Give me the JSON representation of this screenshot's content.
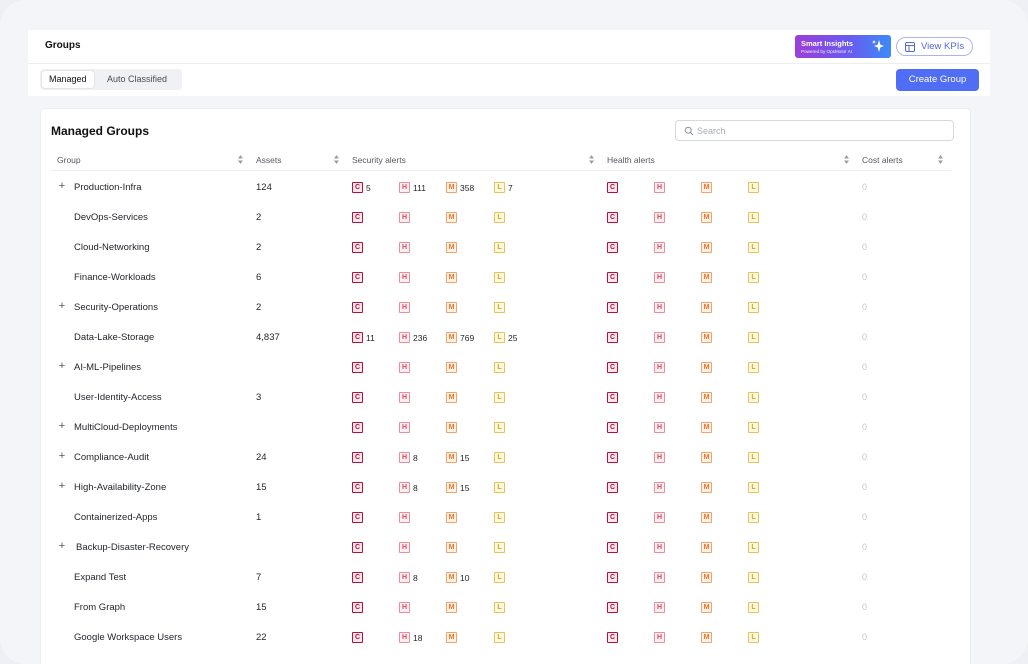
{
  "header": {
    "title": "Groups",
    "smart_insights": {
      "title": "Smart Insights",
      "subtitle": "Powered by OpsMotor AI"
    },
    "view_kpis": "View KPIs"
  },
  "tabs": [
    {
      "label": "Managed",
      "active": true
    },
    {
      "label": "Auto Classified",
      "active": false
    }
  ],
  "create_group": "Create Group",
  "card": {
    "title": "Managed Groups",
    "search_placeholder": "Search"
  },
  "columns": {
    "group": "Group",
    "assets": "Assets",
    "security": "Security alerts",
    "health": "Health alerts",
    "cost": "Cost alerts"
  },
  "badge_letters": {
    "c": "C",
    "h": "H",
    "m": "M",
    "l": "L"
  },
  "colors": {
    "critical": "#b3123c",
    "high": "#e2445c",
    "medium": "#e8742e",
    "low": "#d8a418",
    "accent": "#4f6df5"
  },
  "rows": [
    {
      "expandable": true,
      "name": "Production-Infra",
      "assets": "124",
      "sec": {
        "c": "5",
        "h": "111",
        "m": "358",
        "l": "7"
      },
      "cost": "0"
    },
    {
      "expandable": false,
      "name": "DevOps-Services",
      "assets": "2",
      "sec": {
        "c": "",
        "h": "",
        "m": "",
        "l": ""
      },
      "cost": "0"
    },
    {
      "expandable": false,
      "name": "Cloud-Networking",
      "assets": "2",
      "sec": {
        "c": "",
        "h": "",
        "m": "",
        "l": ""
      },
      "cost": "0"
    },
    {
      "expandable": false,
      "name": "Finance-Workloads",
      "assets": "6",
      "sec": {
        "c": "",
        "h": "",
        "m": "",
        "l": ""
      },
      "cost": "0"
    },
    {
      "expandable": true,
      "name": "Security-Operations",
      "assets": "2",
      "sec": {
        "c": "",
        "h": "",
        "m": "",
        "l": ""
      },
      "cost": "0"
    },
    {
      "expandable": false,
      "name": "Data-Lake-Storage",
      "assets": "4,837",
      "sec": {
        "c": "11",
        "h": "236",
        "m": "769",
        "l": "25"
      },
      "cost": "0"
    },
    {
      "expandable": true,
      "name": "AI-ML-Pipelines",
      "assets": "",
      "sec": {
        "c": "",
        "h": "",
        "m": "",
        "l": ""
      },
      "cost": "0"
    },
    {
      "expandable": false,
      "name": "User-Identity-Access",
      "assets": "3",
      "sec": {
        "c": "",
        "h": "",
        "m": "",
        "l": ""
      },
      "cost": "0"
    },
    {
      "expandable": true,
      "name": "MultiCloud-Deployments",
      "assets": "",
      "sec": {
        "c": "",
        "h": "",
        "m": "",
        "l": ""
      },
      "cost": "0"
    },
    {
      "expandable": true,
      "name": "Compliance-Audit",
      "assets": "24",
      "sec": {
        "c": "",
        "h": "8",
        "m": "15",
        "l": ""
      },
      "cost": "0"
    },
    {
      "expandable": true,
      "name": "High-Availability-Zone",
      "assets": "15",
      "sec": {
        "c": "",
        "h": "8",
        "m": "15",
        "l": ""
      },
      "cost": "0"
    },
    {
      "expandable": false,
      "name": "Containerized-Apps",
      "assets": "1",
      "sec": {
        "c": "",
        "h": "",
        "m": "",
        "l": ""
      },
      "cost": "0"
    },
    {
      "expandable": true,
      "name": "Backup-Disaster-Recovery",
      "assets": "",
      "sec": {
        "c": "",
        "h": "",
        "m": "",
        "l": ""
      },
      "cost": "0"
    },
    {
      "expandable": false,
      "name": "Expand Test",
      "assets": "7",
      "sec": {
        "c": "",
        "h": "8",
        "m": "10",
        "l": ""
      },
      "cost": "0"
    },
    {
      "expandable": false,
      "name": "From Graph",
      "assets": "15",
      "sec": {
        "c": "",
        "h": "",
        "m": "",
        "l": ""
      },
      "cost": "0"
    },
    {
      "expandable": false,
      "name": "Google Workspace Users",
      "assets": "22",
      "sec": {
        "c": "",
        "h": "18",
        "m": "",
        "l": ""
      },
      "cost": "0"
    }
  ]
}
